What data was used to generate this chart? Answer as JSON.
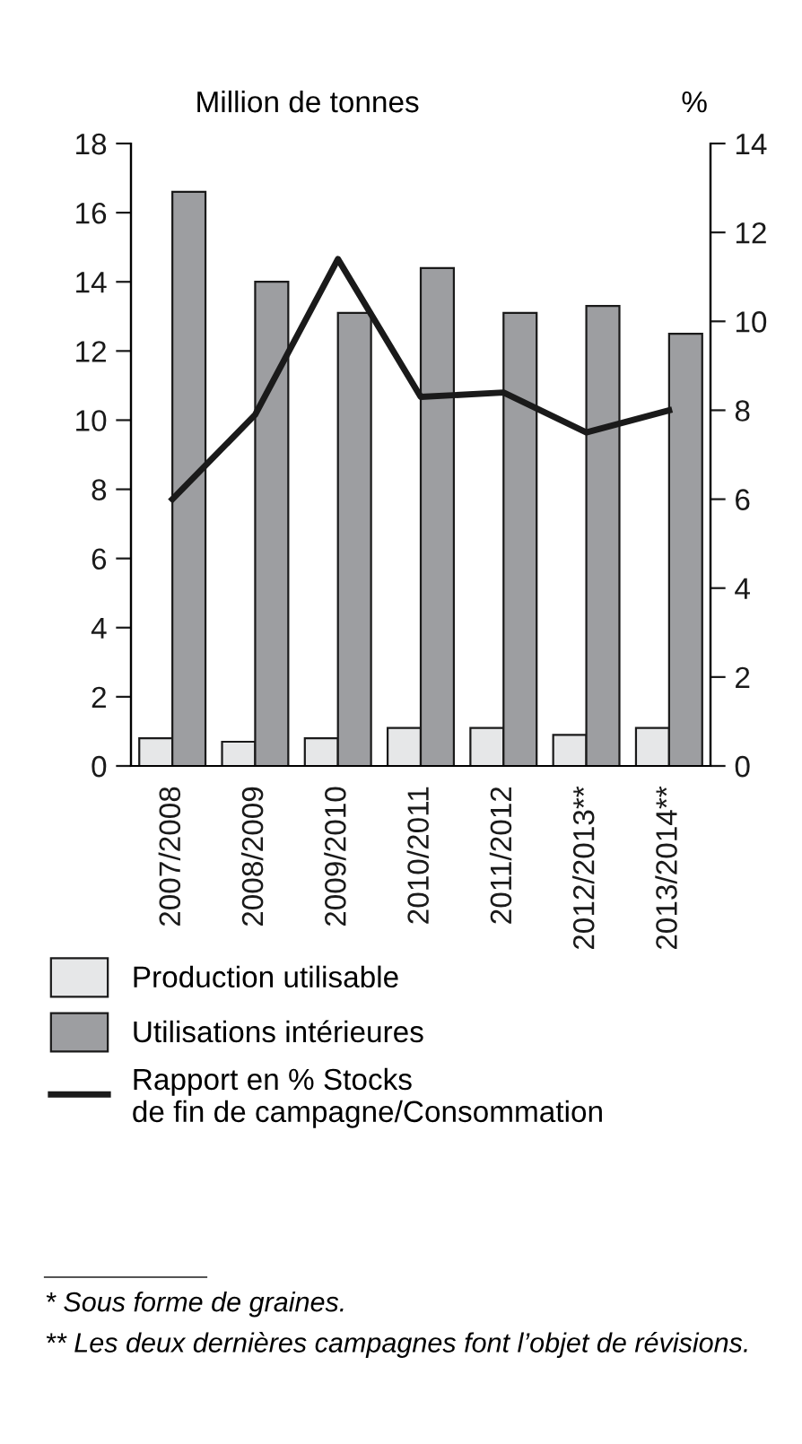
{
  "chart_data": {
    "type": "bar",
    "ylabel": "Million de tonnes",
    "y2label": "%",
    "categories": [
      "2007/2008",
      "2008/2009",
      "2009/2010",
      "2010/2011",
      "2011/2012",
      "2012/2013**",
      "2013/2014**"
    ],
    "series": [
      {
        "name": "Production utilisable",
        "color": "#e6e7e8",
        "values": [
          0.8,
          0.7,
          0.8,
          1.1,
          1.1,
          0.9,
          1.1
        ]
      },
      {
        "name": "Utilisations intérieures",
        "color": "#9d9ea1",
        "values": [
          16.6,
          14.0,
          13.1,
          14.4,
          13.1,
          13.3,
          12.5
        ]
      },
      {
        "name": "Rapport en % Stocks\nde fin de campagne/Consommation",
        "color": "#1a1a1a",
        "type": "line",
        "axis": "y2",
        "values": [
          6.0,
          7.9,
          11.4,
          8.3,
          8.4,
          7.5,
          8.0
        ]
      }
    ],
    "ylim": [
      0,
      18
    ],
    "yticks": [
      0,
      2,
      4,
      6,
      8,
      10,
      12,
      14,
      16,
      18
    ],
    "y2lim": [
      0,
      14
    ],
    "y2ticks": [
      0,
      2,
      4,
      6,
      8,
      10,
      12,
      14
    ],
    "legend": "bottom",
    "grid": false,
    "marker": "none",
    "line_style": "solid",
    "annotations": [
      "* Sous forme de graines.",
      "** Les deux dernières campagnes font l’objet de révisions."
    ]
  }
}
